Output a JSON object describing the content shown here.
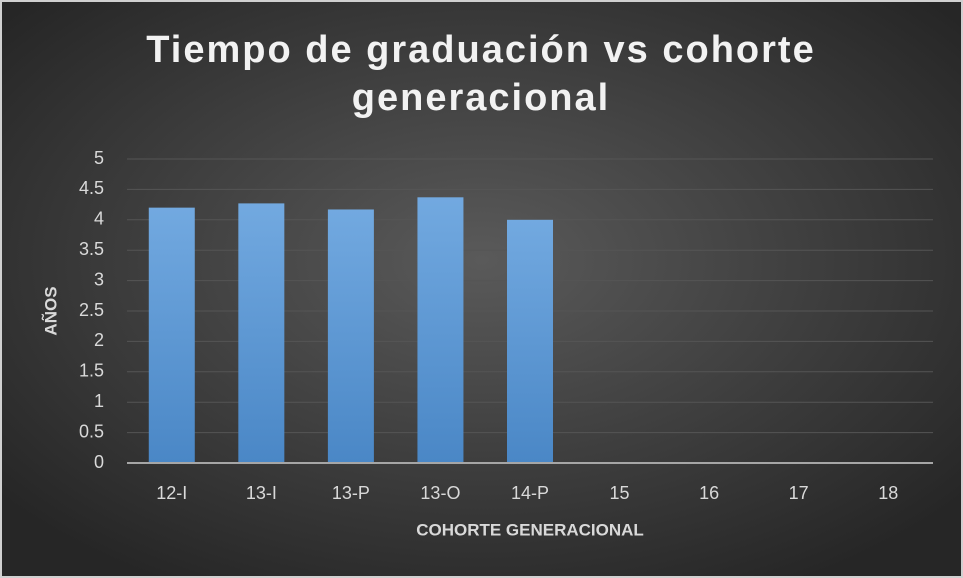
{
  "chart_data": {
    "type": "bar",
    "title": "Tiempo de graduación vs cohorte generacional",
    "x_label": "COHORTE GENERACIONAL",
    "y_label": "AÑOS",
    "categories": [
      "12-I",
      "13-I",
      "13-P",
      "13-O",
      "14-P",
      "15",
      "16",
      "17",
      "18"
    ],
    "values": [
      4.2,
      4.27,
      4.17,
      4.37,
      4.0,
      null,
      null,
      null,
      null
    ],
    "color": "#5b9bd5",
    "ylim": [
      0,
      5
    ],
    "yticks": [
      0,
      0.5,
      1,
      1.5,
      2,
      2.5,
      3,
      3.5,
      4,
      4.5,
      5
    ],
    "grid": true
  }
}
